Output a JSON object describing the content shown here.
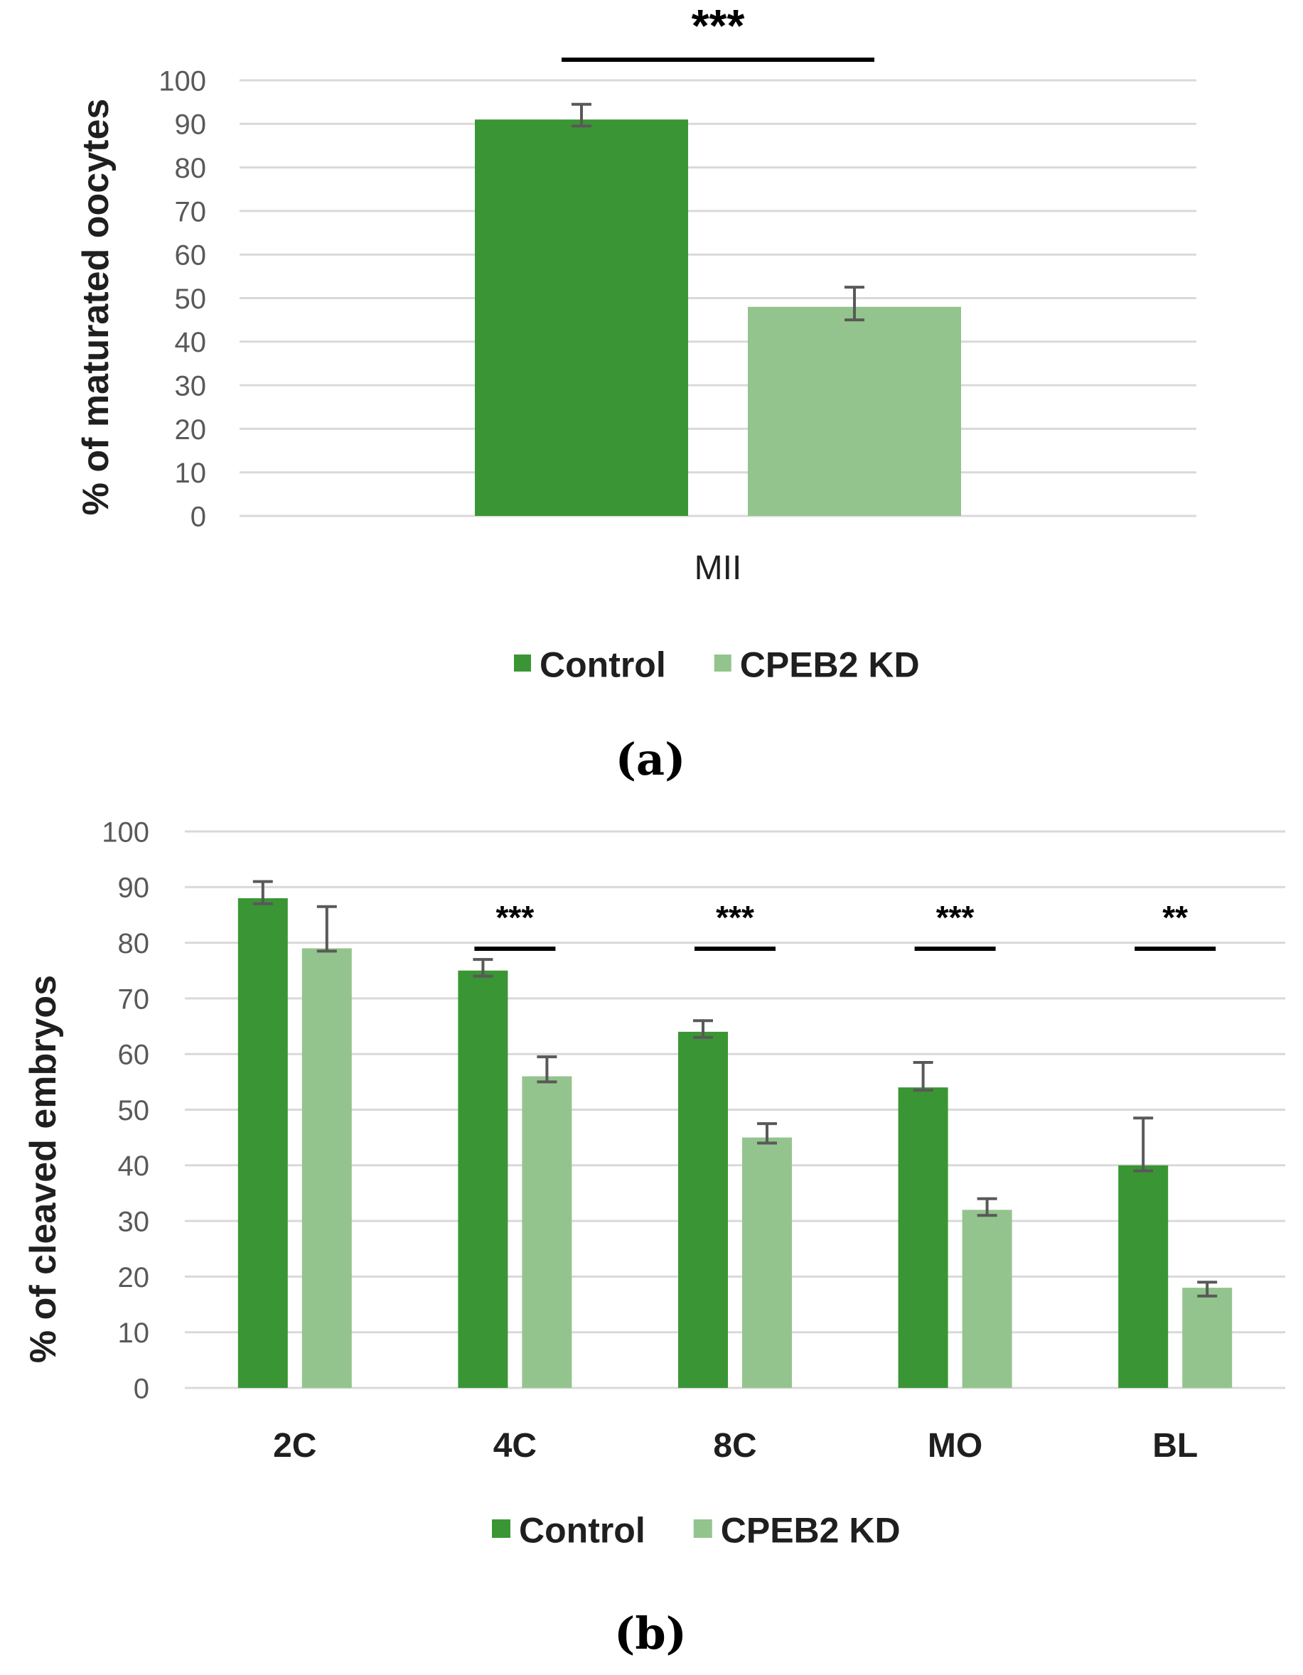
{
  "colors": {
    "control": "#3a9634",
    "kd": "#93c48d",
    "grid": "#d9d9d9",
    "tick_text": "#595959",
    "axis_title": "#1f1f1f",
    "errorbar": "#595959",
    "sig_line": "#000000"
  },
  "chart_data": [
    {
      "panel": "a",
      "panel_label": "(a)",
      "type": "bar",
      "ylabel": "% of maturated  oocytes",
      "xlabel": "",
      "ylim": [
        0,
        100
      ],
      "yticks": [
        0,
        10,
        20,
        30,
        40,
        50,
        60,
        70,
        80,
        90,
        100
      ],
      "grid": true,
      "categories": [
        "MII"
      ],
      "series": [
        {
          "name": "Control",
          "values": [
            91
          ],
          "error_low": [
            89.5
          ],
          "error_high": [
            94.5
          ]
        },
        {
          "name": "CPEB2 KD",
          "values": [
            48
          ],
          "error_low": [
            45
          ],
          "error_high": [
            52.5
          ]
        }
      ],
      "significance": [
        {
          "category": "MII",
          "label": "***",
          "span": "between-bars"
        }
      ],
      "legend": {
        "position": "bottom",
        "entries": [
          "Control",
          "CPEB2 KD"
        ]
      }
    },
    {
      "panel": "b",
      "panel_label": "(b)",
      "type": "bar",
      "ylabel": "% of cleaved embryos",
      "xlabel": "",
      "ylim": [
        0,
        100
      ],
      "yticks": [
        0,
        10,
        20,
        30,
        40,
        50,
        60,
        70,
        80,
        90,
        100
      ],
      "grid": true,
      "categories": [
        "2C",
        "4C",
        "8C",
        "MO",
        "BL"
      ],
      "series": [
        {
          "name": "Control",
          "values": [
            88,
            75,
            64,
            54,
            40
          ],
          "error_low": [
            87,
            74,
            63,
            53.5,
            39
          ],
          "error_high": [
            91,
            77,
            66,
            58.5,
            48.5
          ]
        },
        {
          "name": "CPEB2 KD",
          "values": [
            79,
            56,
            45,
            32,
            18
          ],
          "error_low": [
            78.5,
            55,
            44,
            31,
            16.5
          ],
          "error_high": [
            86.5,
            59.5,
            47.5,
            34,
            19
          ]
        }
      ],
      "significance": [
        {
          "category": "4C",
          "label": "***"
        },
        {
          "category": "8C",
          "label": "***"
        },
        {
          "category": "MO",
          "label": "***"
        },
        {
          "category": "BL",
          "label": "**"
        }
      ],
      "legend": {
        "position": "bottom",
        "entries": [
          "Control",
          "CPEB2 KD"
        ]
      }
    }
  ]
}
